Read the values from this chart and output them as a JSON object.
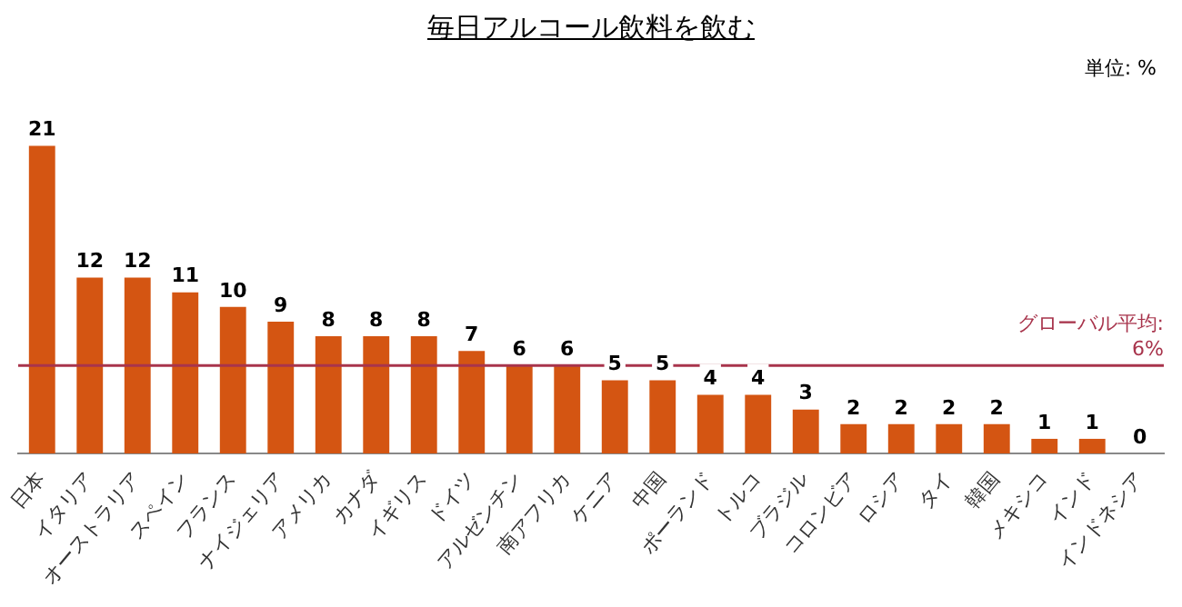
{
  "chart_data": {
    "type": "bar",
    "title": "毎日アルコール飲料を飲む",
    "annotations": [
      "単位: %"
    ],
    "categories": [
      "日本",
      "イタリア",
      "オーストラリア",
      "スペイン",
      "フランス",
      "ナイジェリア",
      "アメリカ",
      "カナダ",
      "イギリス",
      "ドイツ",
      "アルゼンチン",
      "南アフリカ",
      "ケニア",
      "中国",
      "ポーランド",
      "トルコ",
      "ブラジル",
      "コロンビア",
      "ロシア",
      "タイ",
      "韓国",
      "メキシコ",
      "インド",
      "インドネシア"
    ],
    "values": [
      21,
      12,
      12,
      11,
      10,
      9,
      8,
      8,
      8,
      7,
      6,
      6,
      5,
      5,
      4,
      4,
      3,
      2,
      2,
      2,
      2,
      1,
      1,
      0
    ],
    "color": "#d45512",
    "tick_labels": "x",
    "data_labels": true,
    "grid": false,
    "legend": false,
    "ref_lines": [
      {
        "axis": "y",
        "value": 6,
        "label": "グローバル平均:\n6%",
        "color": "#a8344c"
      }
    ]
  }
}
